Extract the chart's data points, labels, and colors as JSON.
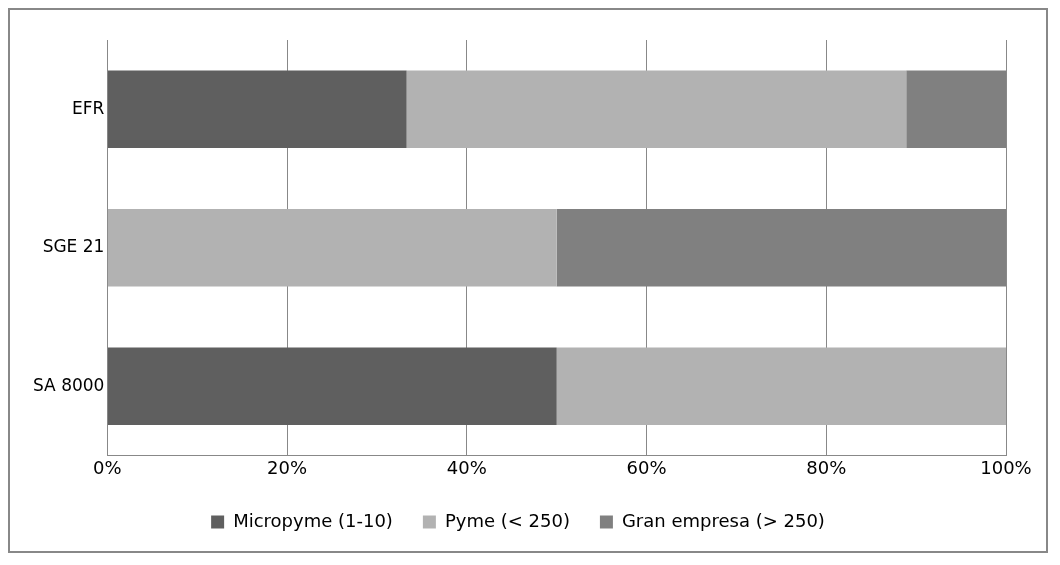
{
  "chart_data": {
    "type": "bar",
    "orientation": "horizontal",
    "stacked": true,
    "categories": [
      "EFR",
      "SGE 21",
      "SA 8000"
    ],
    "series": [
      {
        "name": "Micropyme (1-10)",
        "color": "#5f5f5f",
        "values": [
          33.3,
          0,
          50
        ]
      },
      {
        "name": "Pyme (< 250)",
        "color": "#b2b2b2",
        "values": [
          55.6,
          50,
          50
        ]
      },
      {
        "name": "Gran empresa (> 250)",
        "color": "#808080",
        "values": [
          11.1,
          50,
          0
        ]
      }
    ],
    "xlim": [
      0,
      100
    ],
    "xticks": [
      {
        "value": 0,
        "label": "0%"
      },
      {
        "value": 20,
        "label": "20%"
      },
      {
        "value": 40,
        "label": "40%"
      },
      {
        "value": 60,
        "label": "60%"
      },
      {
        "value": 80,
        "label": "80%"
      },
      {
        "value": 100,
        "label": "100%"
      }
    ],
    "grid": "x",
    "legend": "bottom"
  }
}
